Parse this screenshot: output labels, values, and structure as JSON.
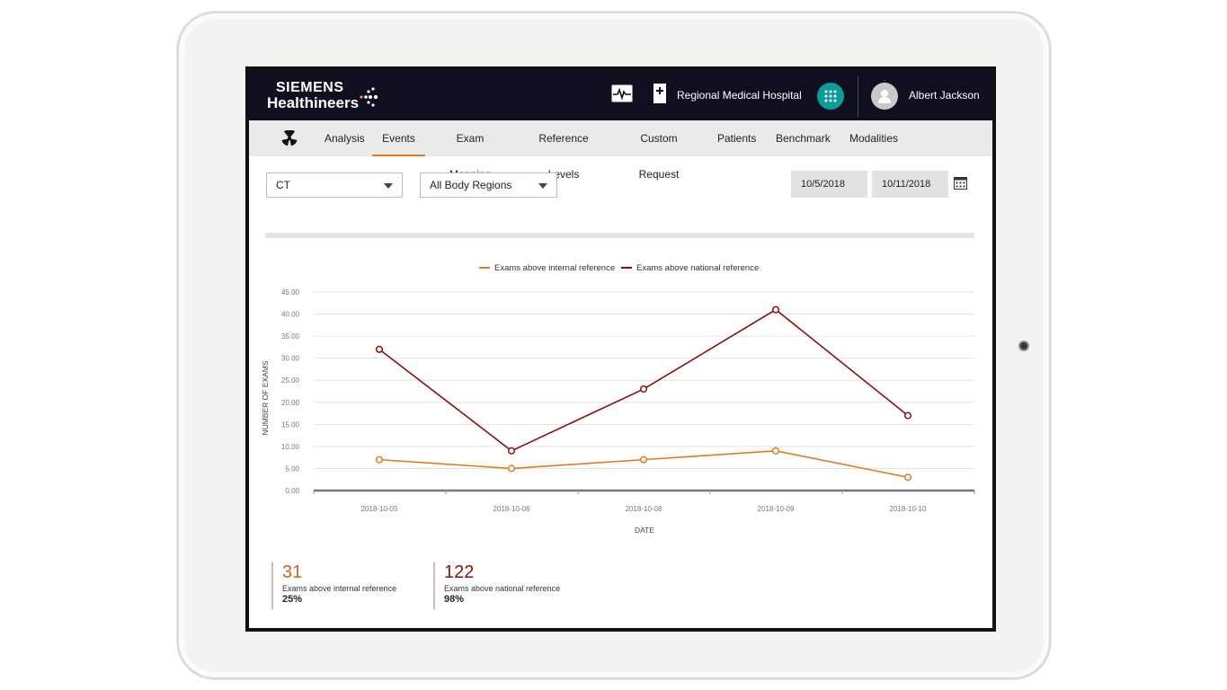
{
  "brand": {
    "line1": "SIEMENS",
    "line2": "Healthineers"
  },
  "header": {
    "hospital": "Regional Medical Hospital",
    "user": "Albert Jackson",
    "apps_color": "#0d9c9a"
  },
  "nav": {
    "active": "Events",
    "items": [
      "Analysis",
      "Events",
      "Exam Mapping",
      "Reference Levels",
      "Custom Request",
      "Patients",
      "Benchmark",
      "Modalities"
    ]
  },
  "filters": {
    "modality": "CT",
    "body_region": "All Body Regions",
    "date_from": "10/5/2018",
    "date_to": "10/11/2018"
  },
  "chart_data": {
    "type": "line",
    "title": "",
    "xlabel": "DATE",
    "ylabel": "NUMBER OF EXAMS",
    "ylim": [
      0,
      45
    ],
    "yticks": [
      "0.00",
      "5.00",
      "10.00",
      "15.00",
      "20.00",
      "25.00",
      "30.00",
      "35.00",
      "40.00",
      "45.00"
    ],
    "categories": [
      "2018-10-05",
      "2018-10-06",
      "2018-10-08",
      "2018-10-09",
      "2018-10-10"
    ],
    "grid": true,
    "legend_position": "top-center",
    "series": [
      {
        "name": "Exams above internal reference",
        "color": "#e07b1f",
        "values": [
          7,
          5,
          7,
          9,
          3
        ]
      },
      {
        "name": "Exams above national reference",
        "color": "#8b1010",
        "values": [
          32,
          9,
          23,
          41,
          17
        ]
      }
    ]
  },
  "summary": [
    {
      "value": "31",
      "label": "Exams above internal reference",
      "percent": "25%",
      "color": "#c8651a"
    },
    {
      "value": "122",
      "label": "Exams above national reference",
      "percent": "98%",
      "color": "#8b1010"
    }
  ]
}
